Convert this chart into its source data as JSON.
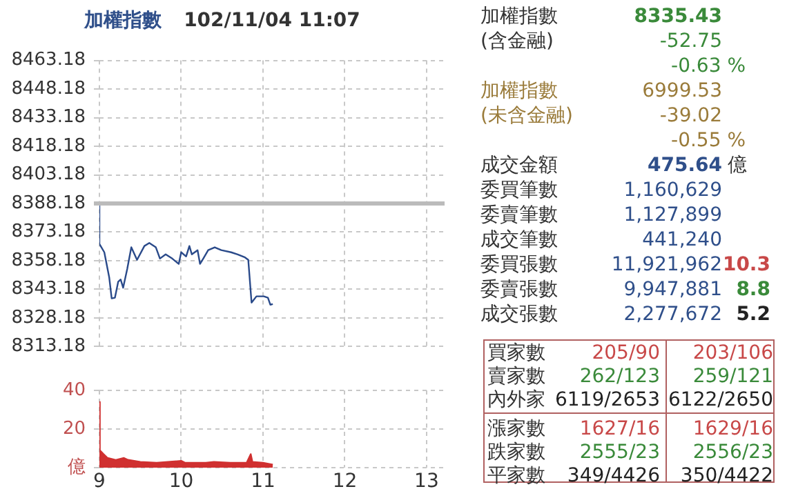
{
  "chart_data": [
    {
      "type": "line",
      "title": "加權指數",
      "subtitle": "102/11/04 11:07",
      "x": [
        9.0,
        9.0,
        9.06,
        9.12,
        9.15,
        9.19,
        9.23,
        9.26,
        9.29,
        9.34,
        9.39,
        9.46,
        9.55,
        9.61,
        9.69,
        9.74,
        9.81,
        9.89,
        9.97,
        10.0,
        10.06,
        10.1,
        10.13,
        10.2,
        10.23,
        10.27,
        10.33,
        10.41,
        10.49,
        10.61,
        10.69,
        10.78,
        10.82,
        10.86,
        10.92,
        11.01,
        11.06,
        11.09,
        11.12
      ],
      "series": [
        {
          "color": "#2a4a8a",
          "values": [
            8388.18,
            8367,
            8362.6,
            8349.4,
            8338.4,
            8338.8,
            8347.2,
            8348.3,
            8344,
            8353.8,
            8365.2,
            8358.6,
            8365.9,
            8367.5,
            8365.2,
            8359.3,
            8361.5,
            8359.3,
            8356.5,
            8362.6,
            8360.4,
            8365.9,
            8361.5,
            8363.7,
            8356.5,
            8359.3,
            8363.7,
            8365.2,
            8363.7,
            8362.6,
            8361.5,
            8359.9,
            8358.6,
            8336.2,
            8339.5,
            8339.5,
            8338.8,
            8335.1,
            8335.43
          ]
        }
      ],
      "xlim": [
        9,
        13.22
      ],
      "xticks": [
        9,
        10,
        11,
        12,
        13
      ],
      "ylim": [
        8313.18,
        8463.18
      ],
      "yticks": [
        8313.18,
        8328.18,
        8343.18,
        8358.18,
        8373.18,
        8388.18,
        8403.18,
        8418.18,
        8433.18,
        8448.18,
        8463.18
      ],
      "ref_lines": [
        {
          "axis": "y",
          "value": 8388.18,
          "color": "#bbbbbb"
        }
      ],
      "grid": true,
      "legend": false,
      "tick_labels": "y"
    },
    {
      "type": "area",
      "x": [
        9.0,
        9.0,
        9.01,
        9.05,
        9.1,
        9.2,
        9.3,
        9.35,
        9.5,
        9.7,
        10.0,
        10.05,
        10.3,
        10.4,
        10.6,
        10.8,
        10.85,
        10.87,
        11.0,
        11.12
      ],
      "series": [
        {
          "color": "#d03030",
          "values": [
            0,
            34,
            9,
            7,
            5,
            4,
            5,
            4,
            3,
            2.5,
            3.5,
            2.5,
            2.5,
            3,
            2.5,
            2.5,
            7,
            3,
            2.5,
            1.5
          ]
        }
      ],
      "xlim": [
        9,
        13.22
      ],
      "xticks": [
        9,
        10,
        11,
        12,
        13
      ],
      "ylim": [
        0,
        40
      ],
      "yticks": [
        {
          "value": 0,
          "label": "億"
        },
        20,
        40
      ],
      "grid": true,
      "legend": false
    },
    {
      "type": "other",
      "annotations": [
        "加權指數",
        "8335.43",
        "(含金融)",
        "-52.75",
        "-0.63 %",
        "加權指數",
        "6999.53",
        "(未含金融)",
        "-39.02",
        "-0.55 %",
        "成交金額",
        "475.64",
        "億",
        "委買筆數",
        "1,160,629",
        "委賣筆數",
        "1,127,899",
        "成交筆數",
        "441,240",
        "委買張數",
        "11,921,962",
        "10.3",
        "委賣張數",
        "9,947,881",
        "8.8",
        "成交張數",
        "2,277,672",
        "5.2",
        "買家數",
        "205/90",
        "203/106",
        "賣家數",
        "262/123",
        "259/121",
        "內外家",
        "6119/2653",
        "6122/2650",
        "漲家數",
        "1627/16",
        "1629/16",
        "跌家數",
        "2555/23",
        "2556/23",
        "平家數",
        "349/4426",
        "350/4422"
      ]
    }
  ]
}
